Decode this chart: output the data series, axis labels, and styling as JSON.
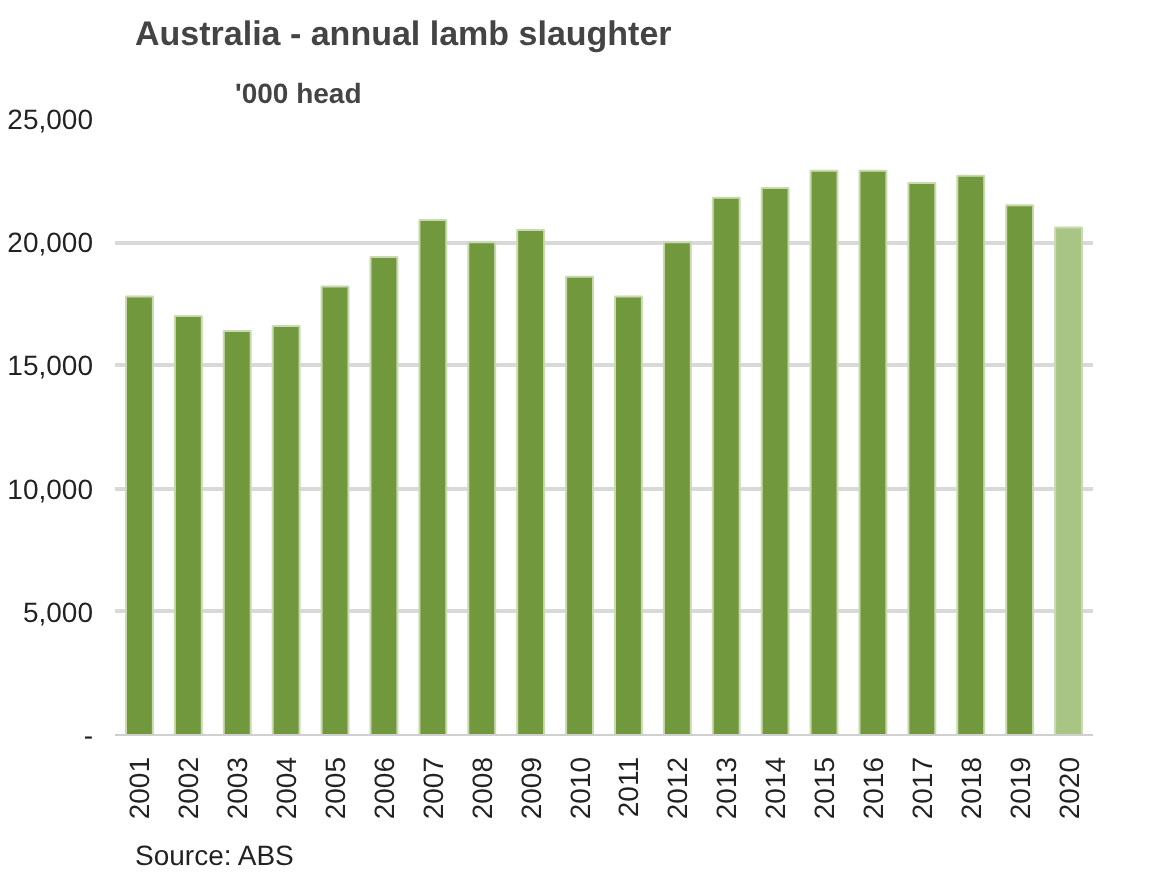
{
  "chart_data": {
    "type": "bar",
    "title": "Australia - annual lamb slaughter",
    "ylabel": "'000 head",
    "categories": [
      "2001",
      "2002",
      "2003",
      "2004",
      "2005",
      "2006",
      "2007",
      "2008",
      "2009",
      "2010",
      "2011",
      "2012",
      "2013",
      "2014",
      "2015",
      "2016",
      "2017",
      "2018",
      "2019",
      "2020"
    ],
    "values": [
      17800,
      17000,
      16400,
      16600,
      18200,
      19400,
      20900,
      20000,
      20500,
      18600,
      17800,
      20000,
      21800,
      22200,
      22900,
      22900,
      22400,
      22700,
      21500,
      20600
    ],
    "colors": [
      "#72983e",
      "#72983e",
      "#72983e",
      "#72983e",
      "#72983e",
      "#72983e",
      "#72983e",
      "#72983e",
      "#72983e",
      "#72983e",
      "#72983e",
      "#72983e",
      "#72983e",
      "#72983e",
      "#72983e",
      "#72983e",
      "#72983e",
      "#72983e",
      "#72983e",
      "#a9c585"
    ],
    "ylim": [
      0,
      25000
    ],
    "yticks": [
      {
        "value": 0,
        "label": "-"
      },
      {
        "value": 5000,
        "label": "5,000"
      },
      {
        "value": 10000,
        "label": "10,000"
      },
      {
        "value": 15000,
        "label": "15,000"
      },
      {
        "value": 20000,
        "label": "20,000"
      },
      {
        "value": 25000,
        "label": "25,000"
      }
    ],
    "grid": "y",
    "annotations": [
      "Source: ABS"
    ]
  }
}
